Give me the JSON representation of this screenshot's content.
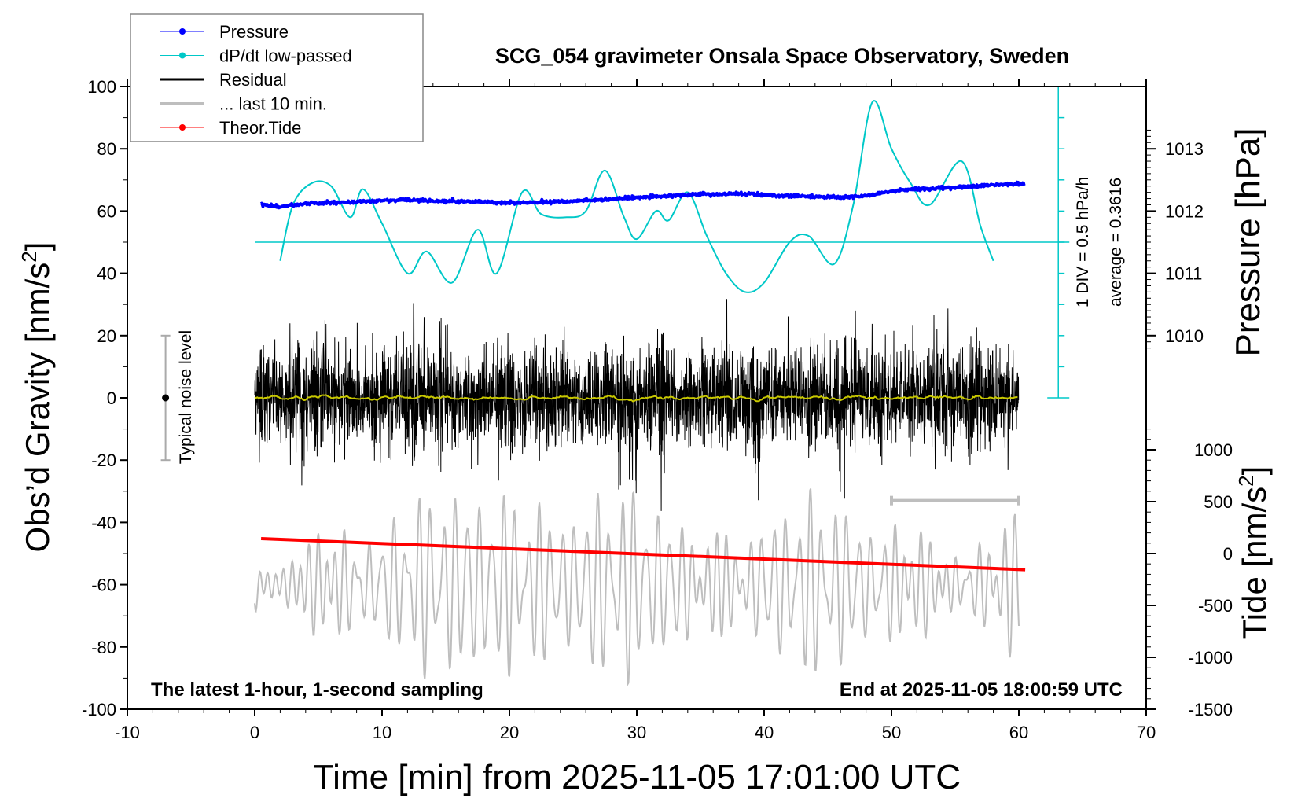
{
  "chart_data": {
    "type": "line",
    "title": "SCG_054 gravimeter Onsala Space Observatory, Sweden",
    "xlabel": "Time [min] from 2025-11-05 17:01:00 UTC",
    "ylabel": "Obs’d Gravity [nm/s²]",
    "ylabel_main": "Obs’d Gravity [nm/s",
    "ylabel_sup": "2",
    "ylabel_end": "]",
    "y2label": "Pressure [hPa]",
    "y3label_main": "Tide [nm/s",
    "y3label_sup": "2",
    "y3label_end": "]",
    "xlim": [
      -10,
      70
    ],
    "ylim": [
      -100,
      100
    ],
    "xticks": [
      -10,
      0,
      10,
      20,
      30,
      40,
      50,
      60,
      70
    ],
    "yticks": [
      -100,
      -80,
      -60,
      -40,
      -20,
      0,
      20,
      40,
      60,
      80,
      100
    ],
    "pressure_ticks": [
      1010,
      1011,
      1012,
      1013
    ],
    "tide_ticks": [
      -1500,
      -1000,
      -500,
      0,
      500,
      1000
    ],
    "legend": [
      {
        "label": "Pressure",
        "color": "#0000ff",
        "marker": true
      },
      {
        "label": "dP/dt low-passed",
        "color": "#00c8c8",
        "marker": true
      },
      {
        "label": "Residual",
        "color": "#000000",
        "marker": false
      },
      {
        "label": "... last 10 min.",
        "color": "#bebebe",
        "marker": false
      },
      {
        "label": "Theor.Tide",
        "color": "#ff0000",
        "marker": true
      }
    ],
    "legend_position": "top-left",
    "dpdt_scale_label": "1 DIV = 0.5 hPa/h",
    "dpdt_average_label": "average = 0.3616",
    "noise_label": "Typical noise level",
    "noise_level": 20,
    "footer_left": "The latest 1-hour, 1-second sampling",
    "footer_right": "End at 2025-11-05 18:00:59 UTC",
    "series": {
      "pressure_hpa": {
        "x": [
          0.5,
          2,
          4,
          6,
          8,
          10,
          12,
          15,
          18,
          20,
          22,
          25,
          28,
          30,
          32,
          35,
          38,
          41,
          44,
          46,
          48,
          50,
          52,
          55,
          58,
          60.5
        ],
        "y": [
          1012.1,
          1012.07,
          1012.12,
          1012.13,
          1012.15,
          1012.17,
          1012.18,
          1012.16,
          1012.15,
          1012.13,
          1012.14,
          1012.16,
          1012.19,
          1012.22,
          1012.24,
          1012.27,
          1012.28,
          1012.25,
          1012.23,
          1012.22,
          1012.24,
          1012.32,
          1012.35,
          1012.38,
          1012.42,
          1012.44
        ]
      },
      "dpdt_hpa_per_h": {
        "x": [
          2,
          3,
          4.5,
          6,
          7.5,
          8.5,
          10,
          12,
          13.5,
          15.5,
          17.5,
          19,
          21,
          22.5,
          24.5,
          26,
          27.5,
          29,
          30,
          31.5,
          32.5,
          34,
          35.5,
          37,
          38.5,
          40,
          42,
          43.5,
          45.5,
          47,
          48.5,
          50,
          51.5,
          53,
          55.5,
          57,
          58
        ],
        "y": [
          -0.3,
          0.6,
          0.95,
          0.9,
          0.4,
          0.85,
          0.3,
          -0.5,
          -0.15,
          -0.65,
          0.2,
          -0.5,
          0.8,
          0.45,
          0.4,
          0.5,
          1.15,
          0.4,
          0.05,
          0.5,
          0.35,
          0.8,
          0.1,
          -0.5,
          -0.8,
          -0.65,
          0.0,
          0.1,
          -0.35,
          0.6,
          2.25,
          1.5,
          0.95,
          0.6,
          1.3,
          0.25,
          -0.3
        ]
      },
      "residual": {
        "duration_min": 60,
        "sampling_s": 1,
        "typical_amplitude": 12,
        "max_amplitude": 38
      },
      "last_10_min": {
        "mean": -60,
        "amplitude": 22,
        "dominant_period_min": 0.8
      },
      "theor_tide_nm_s2": {
        "x": [
          0.5,
          60.5
        ],
        "y": [
          144,
          -156
        ]
      },
      "last_10_min_bracket": {
        "x": [
          50,
          60
        ],
        "y": -33
      }
    }
  }
}
